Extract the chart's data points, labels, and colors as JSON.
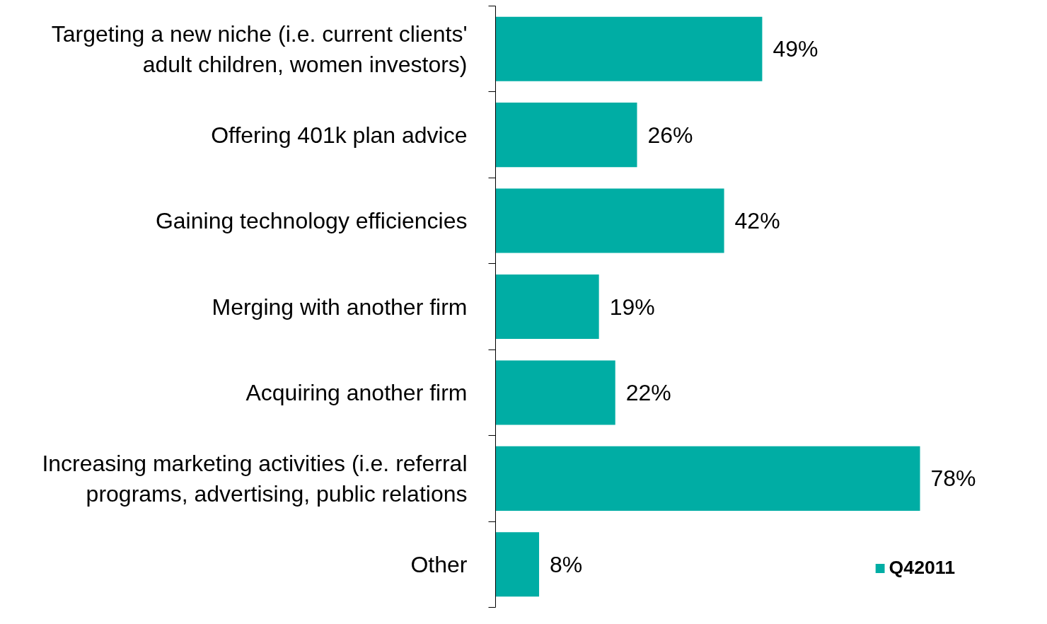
{
  "chart_data": {
    "type": "bar",
    "orientation": "horizontal",
    "categories": [
      "Targeting a new niche (i.e. current clients'\nadult children, women investors)",
      "Offering 401k plan advice",
      "Gaining technology efficiencies",
      "Merging with another firm",
      "Acquiring another firm",
      "Increasing marketing activities (i.e. referral\nprograms, advertising, public relations",
      "Other"
    ],
    "series": [
      {
        "name": "Q42011",
        "color": "#00ada4",
        "values": [
          49,
          26,
          42,
          19,
          22,
          78,
          8
        ],
        "value_labels": [
          "49%",
          "26%",
          "42%",
          "19%",
          "22%",
          "78%",
          "8%"
        ]
      }
    ],
    "legend": "bottom right",
    "grid": false
  }
}
